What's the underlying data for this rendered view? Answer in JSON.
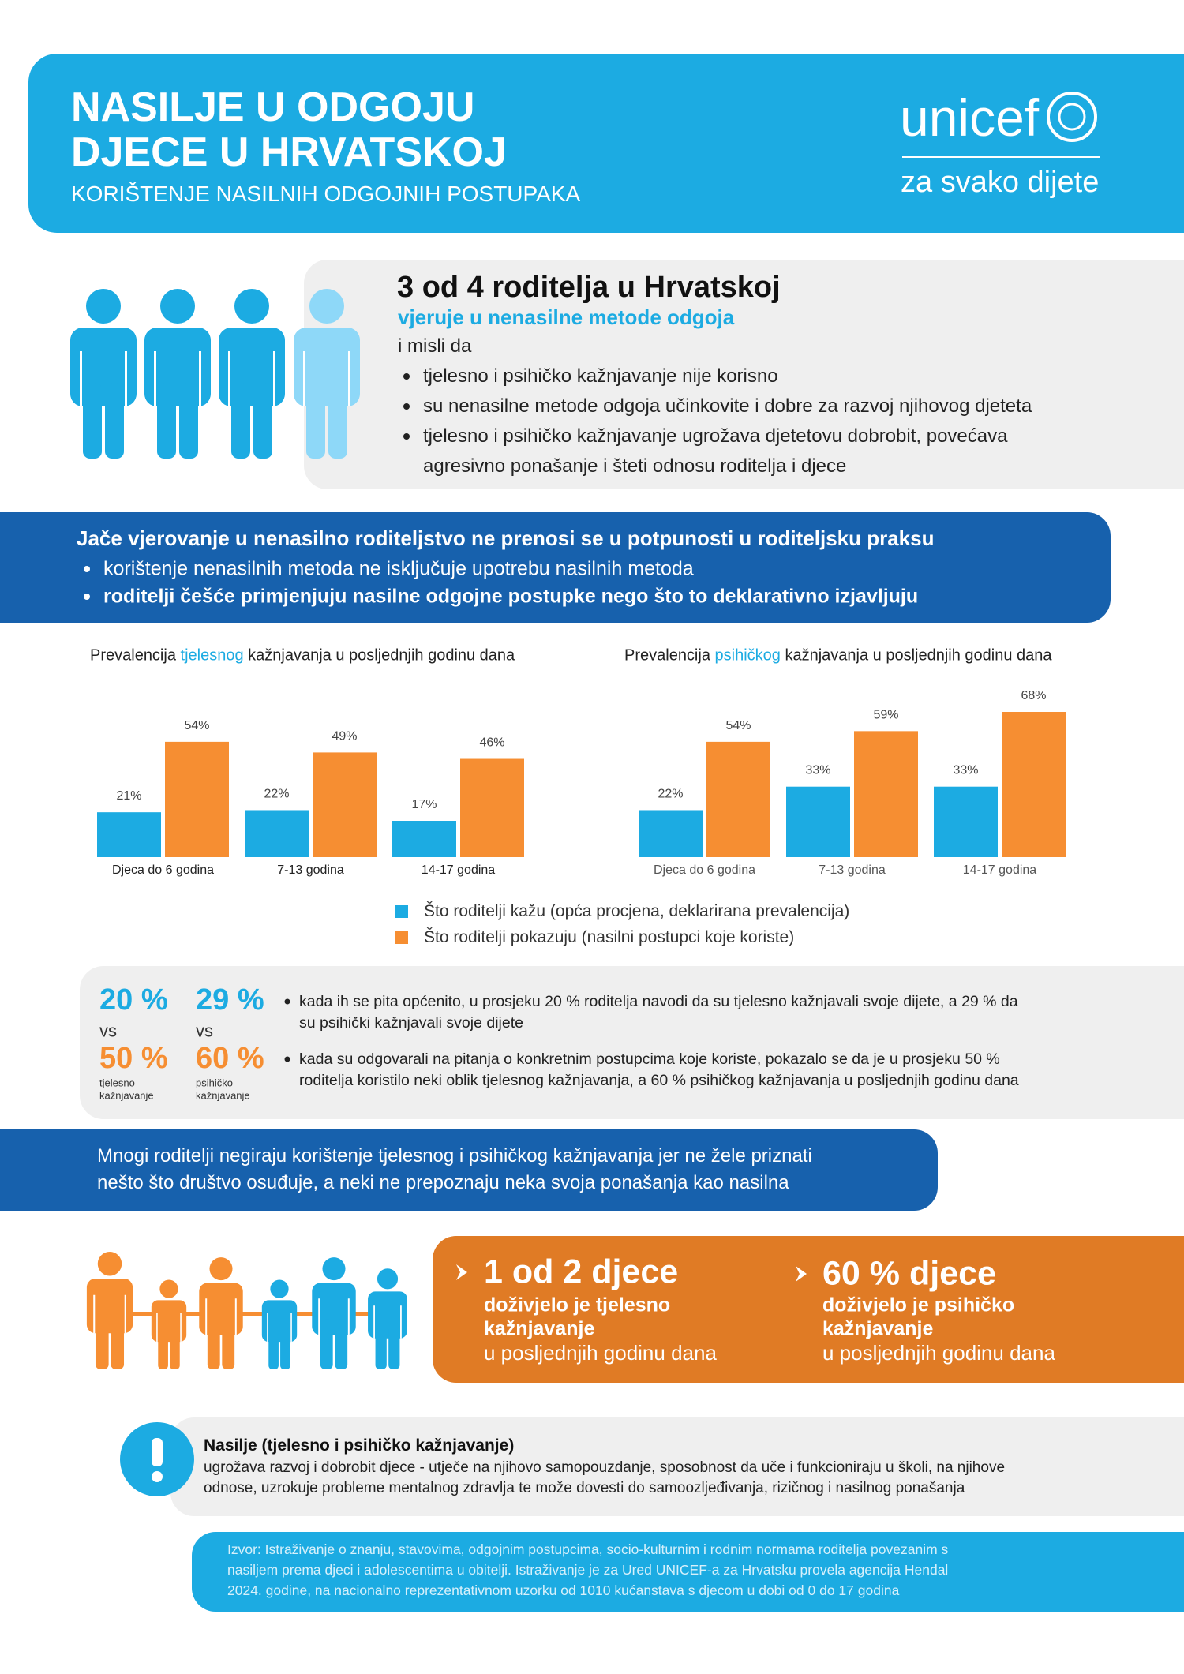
{
  "header": {
    "title_lines": [
      "NASILJE U ODGOJU",
      "DJECE U HRVATSKOJ"
    ],
    "subtitle": "KORIŠTENJE NASILNIH ODGOJNIH POSTUPAKA",
    "logo": "unicef",
    "tagline": "za svako dijete"
  },
  "beliefs": {
    "title": "3 od 4 roditelja u Hrvatskoj",
    "subtitle": "vjeruje u nenasilne metode odgoja",
    "intro": "i misli da",
    "bullets": [
      [
        "tjelesno i psihičko kažnjavanje nije korisno"
      ],
      [
        "su nenasilne metode odgoja učinkovite i dobre za razvoj njihovog djeteta"
      ],
      [
        "tjelesno i psihičko kažnjavanje ugrožava djetetovu dobrobit, povećava",
        "agresivno ponašanje i šteti odnosu roditelja i djece"
      ]
    ]
  },
  "practice": {
    "title": "Jače vjerovanje u nenasilno roditeljstvo ne prenosi se u potpunosti u roditeljsku praksu",
    "bullets": [
      "korištenje nenasilnih metoda ne isključuje upotrebu nasilnih metoda",
      "roditelji češće primjenjuju nasilne odgojne postupke nego što to deklarativno izjavljuju"
    ]
  },
  "chart_data": [
    {
      "type": "bar",
      "title": {
        "before": "Prevalencija",
        "highlight": "tjelesnog",
        "after": "kažnjavanja u posljednjih godinu dana"
      },
      "categories": [
        "Djeca do 6 godina",
        "7-13 godina",
        "14-17 godina"
      ],
      "series": [
        {
          "name": "Što roditelji kažu (opća procjena, deklarirana prevalencija)",
          "color": "#1cabe2",
          "values": [
            21,
            22,
            17
          ],
          "value_labels": [
            "21%",
            "22%",
            "17%"
          ]
        },
        {
          "name": "Što roditelji pokazuju (nasilni postupci koje koriste)",
          "color": "#f68e32",
          "values": [
            54,
            49,
            46
          ],
          "value_labels": [
            "54%",
            "49%",
            "46%"
          ]
        }
      ]
    },
    {
      "type": "bar",
      "title": {
        "before": "Prevalencija",
        "highlight": "psihičkog",
        "after": "kažnjavanja u posljednjih godinu dana"
      },
      "categories": [
        "Djeca do 6 godina",
        "7-13 godina",
        "14-17 godina"
      ],
      "series": [
        {
          "color": "#1cabe2",
          "values": [
            22,
            33,
            33
          ],
          "value_labels": [
            "22%",
            "33%",
            "33%"
          ]
        },
        {
          "color": "#f68e32",
          "values": [
            54,
            59,
            68
          ],
          "value_labels": [
            "54%",
            "59%",
            "68%"
          ]
        }
      ]
    }
  ],
  "stats": {
    "columns": [
      {
        "said": "20 %",
        "vs": "vs",
        "shown": "50 %",
        "label_lines": [
          "tjelesno",
          "kažnjavanje"
        ]
      },
      {
        "said": "29 %",
        "vs": "vs",
        "shown": "60 %",
        "label_lines": [
          "psihičko",
          "kažnjavanje"
        ]
      }
    ],
    "notes": [
      [
        "kada ih se pita općenito, u prosjeku 20 % roditelja navodi da su tjelesno kažnjavali svoje dijete, a 29 % da",
        "su psihički kažnjavali svoje dijete"
      ],
      [
        "kada su odgovarali na pitanja o konkretnim postupcima koje koriste, pokazalo se da je u prosjeku 50 %",
        "roditelja koristilo neki oblik tjelesnog kažnjavanja, a 60 % psihičkog kažnjavanja u posljednjih godinu dana"
      ]
    ]
  },
  "denial": {
    "lines": [
      "Mnogi roditelji negiraju korištenje tjelesnog i psihičkog kažnjavanja jer ne žele priznati",
      "nešto što društvo osuđuje, a neki ne prepoznaju neka svoja ponašanja kao nasilna"
    ]
  },
  "children": {
    "items": [
      {
        "headline": "1 od 2 djece",
        "bold_lines": [
          "doživjelo je tjelesno",
          "kažnjavanje"
        ],
        "rest": "u posljednjih godinu dana"
      },
      {
        "headline": "60 % djece",
        "bold_lines": [
          "doživjelo je psihičko",
          "kažnjavanje"
        ],
        "rest": "u posljednjih godinu dana"
      }
    ]
  },
  "violence": {
    "title": "Nasilje (tjelesno i psihičko kažnjavanje)",
    "lines": [
      "ugrožava razvoj i dobrobit djece - utječe na njihovo samopouzdanje, sposobnost da uče i funkcioniraju u školi, na njihove",
      "odnose, uzrokuje probleme mentalnog zdravlja te može dovesti do samoozljeđivanja, rizičnog i nasilnog ponašanja"
    ]
  },
  "source": {
    "lines": [
      "Izvor: Istraživanje o znanju, stavovima, odgojnim postupcima, socio-kulturnim i rodnim normama roditelja povezanim s",
      "nasiljem prema djeci i adolescentima u obitelji. Istraživanje je za Ured UNICEF-a za Hrvatsku provela agencija Hendal",
      "2024. godine, na nacionalno reprezentativnom uzorku od 1010 kućanstava s djecom u dobi od 0 do 17 godina"
    ]
  }
}
